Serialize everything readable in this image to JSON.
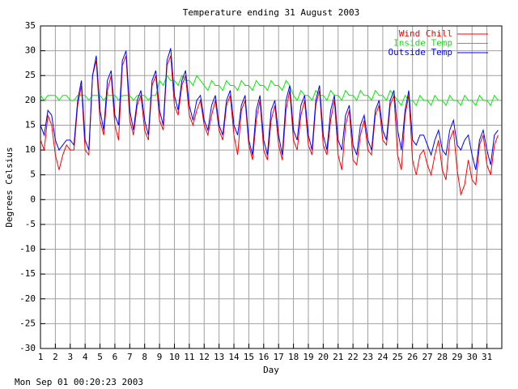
{
  "chart_data": {
    "type": "line",
    "title": "Temperature ending 31 August 2003",
    "x_label": "Day",
    "y_label": "Degrees Celsius",
    "timestamp": "Mon Sep 01 00:20:23 2003",
    "xlim": [
      1,
      32
    ],
    "ylim": [
      -30,
      35
    ],
    "xticks": [
      1,
      2,
      3,
      4,
      5,
      6,
      7,
      8,
      9,
      10,
      11,
      12,
      13,
      14,
      15,
      16,
      17,
      18,
      19,
      20,
      21,
      22,
      23,
      24,
      25,
      26,
      27,
      28,
      29,
      30,
      31
    ],
    "yticks": [
      -30,
      -25,
      -20,
      -15,
      -10,
      -5,
      0,
      5,
      10,
      15,
      20,
      25,
      30,
      35
    ],
    "grid": true,
    "legend": "top-right",
    "x": [
      1,
      1.25,
      1.5,
      1.75,
      2,
      2.25,
      2.5,
      2.75,
      3,
      3.25,
      3.5,
      3.75,
      4,
      4.25,
      4.5,
      4.75,
      5,
      5.25,
      5.5,
      5.75,
      6,
      6.25,
      6.5,
      6.75,
      7,
      7.25,
      7.5,
      7.75,
      8,
      8.25,
      8.5,
      8.75,
      9,
      9.25,
      9.5,
      9.75,
      10,
      10.25,
      10.5,
      10.75,
      11,
      11.25,
      11.5,
      11.75,
      12,
      12.25,
      12.5,
      12.75,
      13,
      13.25,
      13.5,
      13.75,
      14,
      14.25,
      14.5,
      14.75,
      15,
      15.25,
      15.5,
      15.75,
      16,
      16.25,
      16.5,
      16.75,
      17,
      17.25,
      17.5,
      17.75,
      18,
      18.25,
      18.5,
      18.75,
      19,
      19.25,
      19.5,
      19.75,
      20,
      20.25,
      20.5,
      20.75,
      21,
      21.25,
      21.5,
      21.75,
      22,
      22.25,
      22.5,
      22.75,
      23,
      23.25,
      23.5,
      23.75,
      24,
      24.25,
      24.5,
      24.75,
      25,
      25.25,
      25.5,
      25.75,
      26,
      26.25,
      26.5,
      26.75,
      27,
      27.25,
      27.5,
      27.75,
      28,
      28.25,
      28.5,
      28.75,
      29,
      29.25,
      29.5,
      29.75,
      30,
      30.25,
      30.5,
      30.75,
      31,
      31.25,
      31.5,
      31.75
    ],
    "series": [
      {
        "name": "Wind Chill",
        "color": "#ff0000",
        "values": [
          12,
          10,
          17,
          15,
          9,
          6,
          9,
          11,
          10,
          10,
          19,
          23,
          10,
          9,
          25,
          28,
          16,
          13,
          22,
          25,
          15,
          12,
          27,
          29,
          16,
          13,
          19,
          21,
          14,
          12,
          23,
          25,
          16,
          14,
          27,
          29,
          19,
          17,
          23,
          25,
          17,
          15,
          18,
          20,
          15,
          13,
          17,
          20,
          14,
          12,
          19,
          21,
          13,
          9,
          18,
          20,
          11,
          8,
          16,
          20,
          10,
          8,
          16,
          19,
          11,
          8,
          18,
          22,
          12,
          10,
          17,
          20,
          11,
          9,
          19,
          22,
          11,
          9,
          16,
          20,
          9,
          6,
          15,
          18,
          8,
          7,
          13,
          16,
          10,
          9,
          17,
          19,
          12,
          11,
          19,
          21,
          9,
          6,
          17,
          21,
          8,
          5,
          9,
          10,
          7,
          5,
          9,
          12,
          6,
          4,
          12,
          14,
          6,
          1,
          3,
          8,
          4,
          3,
          11,
          13,
          7,
          5,
          11,
          13
        ]
      },
      {
        "name": "Inside Temp",
        "color": "#00ee00",
        "values": [
          21,
          20,
          21,
          21,
          21,
          20,
          21,
          21,
          20,
          20,
          21,
          21,
          21,
          20,
          21,
          21,
          21,
          20,
          21,
          21,
          21,
          20,
          21,
          21,
          21,
          20,
          21,
          21,
          21,
          20,
          21,
          21,
          24,
          23,
          25,
          24,
          24,
          23,
          25,
          24,
          24,
          23,
          25,
          24,
          23,
          22,
          24,
          23,
          23,
          22,
          24,
          23,
          23,
          22,
          24,
          23,
          23,
          22,
          24,
          23,
          23,
          22,
          24,
          23,
          23,
          22,
          24,
          23,
          21,
          20,
          22,
          21,
          21,
          20,
          22,
          21,
          21,
          20,
          22,
          21,
          21,
          20,
          22,
          21,
          21,
          20,
          22,
          21,
          21,
          20,
          22,
          21,
          21,
          20,
          22,
          21,
          20,
          19,
          21,
          20,
          20,
          19,
          21,
          20,
          20,
          19,
          21,
          20,
          20,
          19,
          21,
          20,
          20,
          19,
          21,
          20,
          20,
          19,
          21,
          20,
          20,
          19,
          21,
          20
        ]
      },
      {
        "name": "Outside Temp",
        "color": "#0000ff",
        "values": [
          15,
          13,
          18,
          17,
          12,
          10,
          11,
          12,
          12,
          11,
          20,
          24,
          12,
          10,
          25,
          29,
          18,
          14,
          24,
          26,
          17,
          15,
          28,
          30,
          18,
          14,
          20,
          22,
          16,
          13,
          24,
          26,
          18,
          15,
          28,
          30.5,
          21,
          18,
          24,
          26,
          19,
          16,
          20,
          21,
          16,
          14,
          19,
          21,
          15,
          13,
          20,
          22,
          15,
          13,
          19,
          21,
          12,
          9,
          18,
          21,
          12,
          9,
          18,
          20,
          13,
          9,
          20,
          23,
          14,
          12,
          19,
          21,
          13,
          10,
          20,
          23,
          13,
          10,
          18,
          21,
          12,
          10,
          17,
          19,
          11,
          9,
          15,
          17,
          12,
          10,
          18,
          20,
          14,
          12,
          20,
          22,
          14,
          10,
          18,
          22,
          12,
          11,
          13,
          13,
          11,
          9,
          12,
          14,
          10,
          9,
          14,
          16,
          11,
          10,
          12,
          13,
          9,
          6,
          12,
          14,
          10,
          7,
          13,
          14
        ]
      }
    ]
  }
}
